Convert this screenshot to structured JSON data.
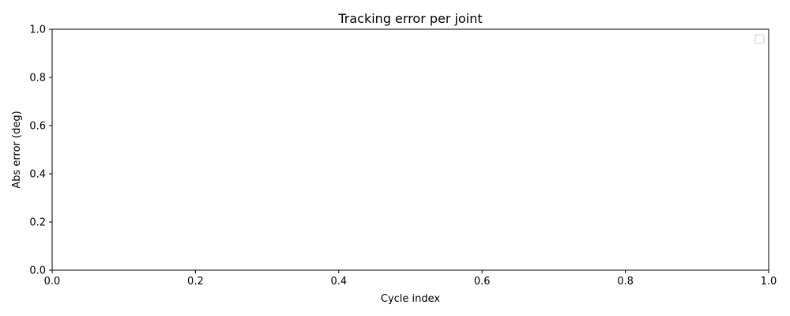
{
  "chart_data": {
    "type": "line",
    "title": "Tracking error per joint",
    "xlabel": "Cycle index",
    "ylabel": "Abs error (deg)",
    "xlim": [
      0,
      1
    ],
    "ylim": [
      0,
      1
    ],
    "xticks": [
      "0.0",
      "0.2",
      "0.4",
      "0.6",
      "0.8",
      "1.0"
    ],
    "yticks": [
      "0.0",
      "0.2",
      "0.4",
      "0.6",
      "0.8",
      "1.0"
    ],
    "series": [],
    "grid": false,
    "legend": {
      "placement": "top-right",
      "entries": []
    }
  }
}
